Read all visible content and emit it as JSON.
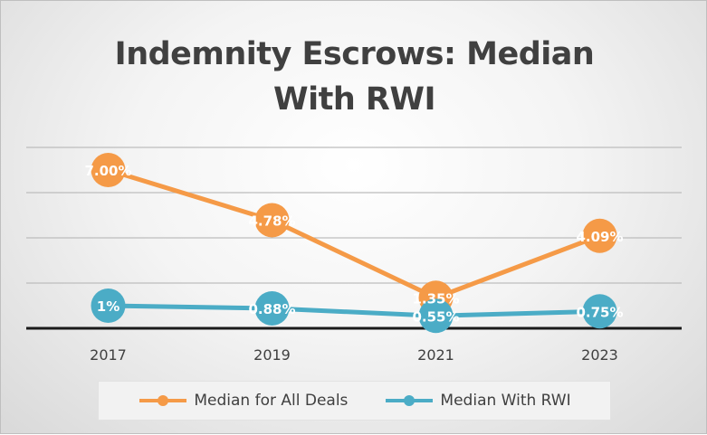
{
  "chart_data": {
    "type": "line",
    "title": "Indemnity Escrows: Median With RWI",
    "title_lines": [
      "Indemnity Escrows: Median",
      "With RWI"
    ],
    "categories": [
      "2017",
      "2019",
      "2021",
      "2023"
    ],
    "ylim": [
      0,
      8
    ],
    "grid": true,
    "legend_position": "bottom",
    "series": [
      {
        "name": "Median for All Deals",
        "values": [
          7.0,
          4.78,
          1.35,
          4.09
        ],
        "labels": [
          "7.00%",
          "4.78%",
          "1.35%",
          "4.09%"
        ],
        "color": "#f59a47"
      },
      {
        "name": "Median With RWI",
        "values": [
          1.0,
          0.88,
          0.55,
          0.75
        ],
        "labels": [
          "1%",
          "0.88%",
          "0.55%",
          "0.75%"
        ],
        "color": "#4bacc6"
      }
    ]
  }
}
